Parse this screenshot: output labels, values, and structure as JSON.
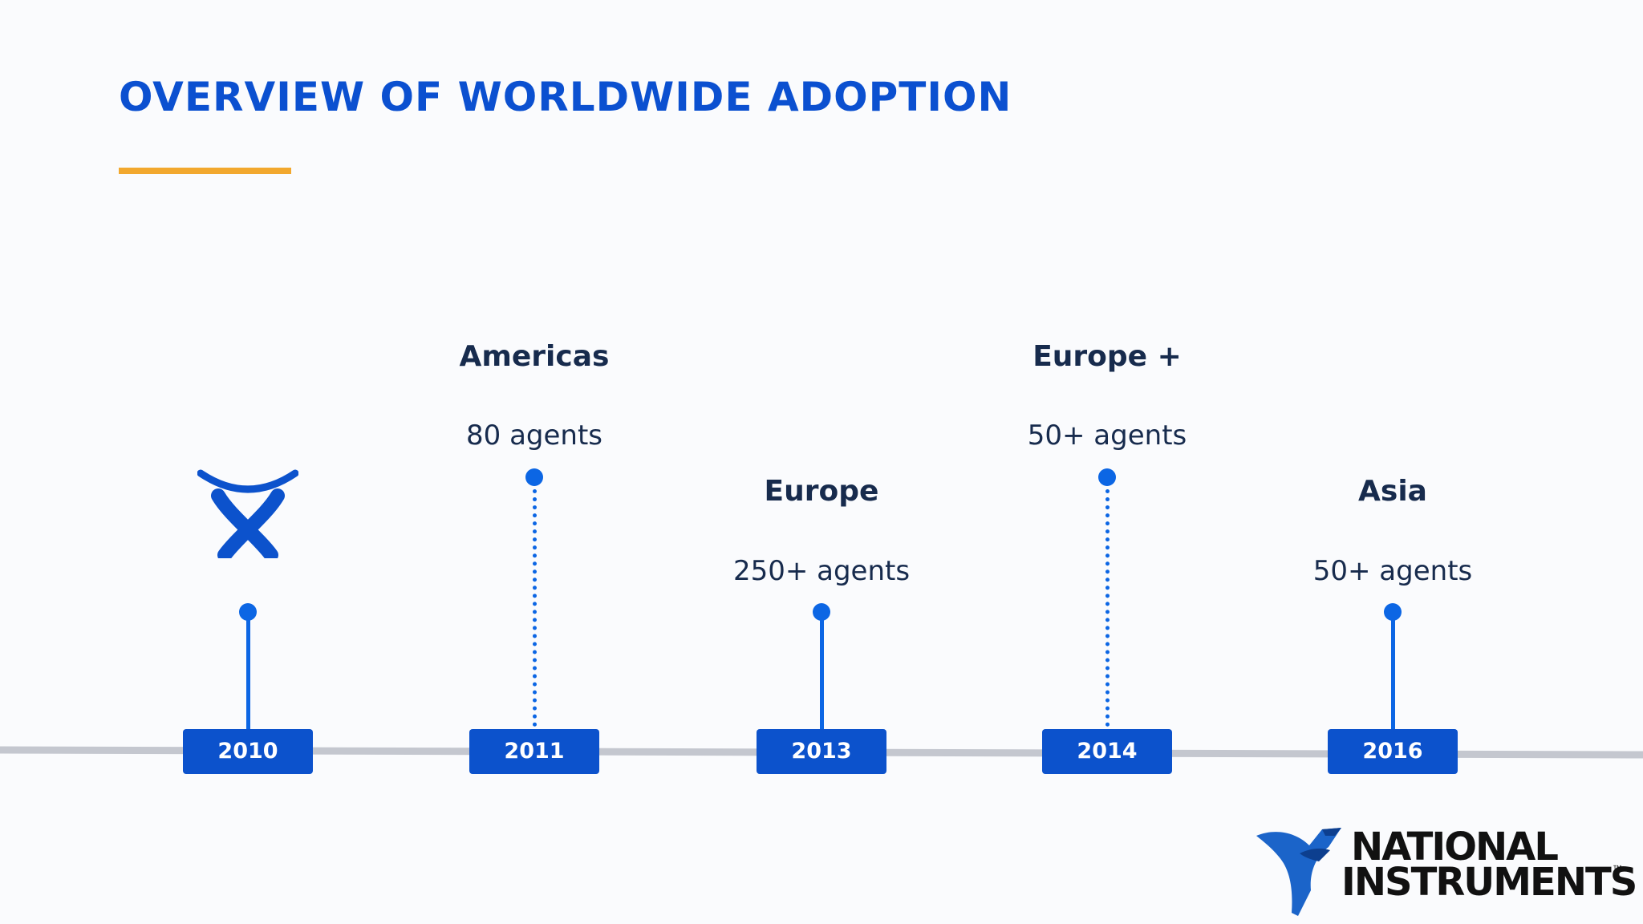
{
  "slide": {
    "title": "OVERVIEW OF WORLDWIDE ADOPTION"
  },
  "colors": {
    "title": "#0b50d0",
    "accent_underline": "#f2a82e",
    "marker": "#0c66e4",
    "year_box": "#0c52cc",
    "axis": "#c4c7cf",
    "text": "#172b4d"
  },
  "timeline": [
    {
      "year": "2010",
      "region": "",
      "count": "",
      "stem": "solid",
      "icon": "atlassian-logo-icon"
    },
    {
      "year": "2011",
      "region": "Americas",
      "count": "80 agents",
      "stem": "dotted"
    },
    {
      "year": "2013",
      "region": "Europe",
      "count": "250+ agents",
      "stem": "solid"
    },
    {
      "year": "2014",
      "region": "Europe +",
      "count": "50+ agents",
      "stem": "dotted"
    },
    {
      "year": "2016",
      "region": "Asia",
      "count": "50+ agents",
      "stem": "solid"
    }
  ],
  "footer_logo": {
    "line1": "NATIONAL",
    "line2": "INSTRUMENTS",
    "tm": "™",
    "icon": "national-instruments-eagle-icon"
  }
}
